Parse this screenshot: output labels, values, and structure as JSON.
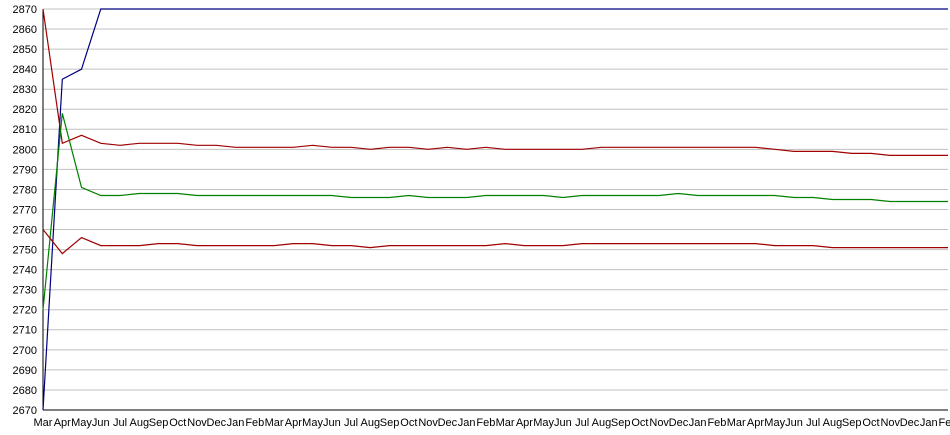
{
  "chart_data": {
    "type": "line",
    "categories": [
      "Mar",
      "Apr",
      "May",
      "Jun",
      "Jul",
      "Aug",
      "Sep",
      "Oct",
      "Nov",
      "Dec",
      "Jan",
      "Feb",
      "Mar",
      "Apr",
      "May",
      "Jun",
      "Jul",
      "Aug",
      "Sep",
      "Oct",
      "Nov",
      "Dec",
      "Jan",
      "Feb",
      "Mar",
      "Apr",
      "May",
      "Jun",
      "Jul",
      "Aug",
      "Sep",
      "Oct",
      "Nov",
      "Dec",
      "Jan",
      "Feb",
      "Mar",
      "Apr",
      "May",
      "Jun",
      "Jul",
      "Aug",
      "Sep",
      "Oct",
      "Nov",
      "Dec",
      "Jan",
      "Feb"
    ],
    "series": [
      {
        "color": "#000080",
        "values": [
          2670,
          2835,
          2840,
          2870,
          2870,
          2870,
          2870,
          2870,
          2870,
          2870,
          2870,
          2870,
          2870,
          2870,
          2870,
          2870,
          2870,
          2870,
          2870,
          2870,
          2870,
          2870,
          2870,
          2870,
          2870,
          2870,
          2870,
          2870,
          2870,
          2870,
          2870,
          2870,
          2870,
          2870,
          2870,
          2870,
          2870,
          2870,
          2870,
          2870,
          2870,
          2870,
          2870,
          2870,
          2870,
          2870,
          2870,
          2870
        ]
      },
      {
        "color": "#a00000",
        "values": [
          2870,
          2803,
          2807,
          2803,
          2802,
          2803,
          2803,
          2803,
          2802,
          2802,
          2801,
          2801,
          2801,
          2801,
          2802,
          2801,
          2801,
          2800,
          2801,
          2801,
          2800,
          2801,
          2800,
          2801,
          2800,
          2800,
          2800,
          2800,
          2800,
          2801,
          2801,
          2801,
          2801,
          2801,
          2801,
          2801,
          2801,
          2801,
          2800,
          2799,
          2799,
          2799,
          2798,
          2798,
          2797,
          2797,
          2797,
          2797
        ]
      },
      {
        "color": "#008000",
        "values": [
          2720,
          2818,
          2781,
          2777,
          2777,
          2778,
          2778,
          2778,
          2777,
          2777,
          2777,
          2777,
          2777,
          2777,
          2777,
          2777,
          2776,
          2776,
          2776,
          2777,
          2776,
          2776,
          2776,
          2777,
          2777,
          2777,
          2777,
          2776,
          2777,
          2777,
          2777,
          2777,
          2777,
          2778,
          2777,
          2777,
          2777,
          2777,
          2777,
          2776,
          2776,
          2775,
          2775,
          2775,
          2774,
          2774,
          2774,
          2774
        ]
      },
      {
        "color": "#a00000",
        "values": [
          2760,
          2748,
          2756,
          2752,
          2752,
          2752,
          2753,
          2753,
          2752,
          2752,
          2752,
          2752,
          2752,
          2753,
          2753,
          2752,
          2752,
          2751,
          2752,
          2752,
          2752,
          2752,
          2752,
          2752,
          2753,
          2752,
          2752,
          2752,
          2753,
          2753,
          2753,
          2753,
          2753,
          2753,
          2753,
          2753,
          2753,
          2753,
          2752,
          2752,
          2752,
          2751,
          2751,
          2751,
          2751,
          2751,
          2751,
          2751
        ]
      }
    ],
    "ylim": [
      2670,
      2870
    ],
    "yticks": [
      2670,
      2680,
      2690,
      2700,
      2710,
      2720,
      2730,
      2740,
      2750,
      2760,
      2770,
      2780,
      2790,
      2800,
      2810,
      2820,
      2830,
      2840,
      2850,
      2860,
      2870
    ],
    "grid": true
  }
}
